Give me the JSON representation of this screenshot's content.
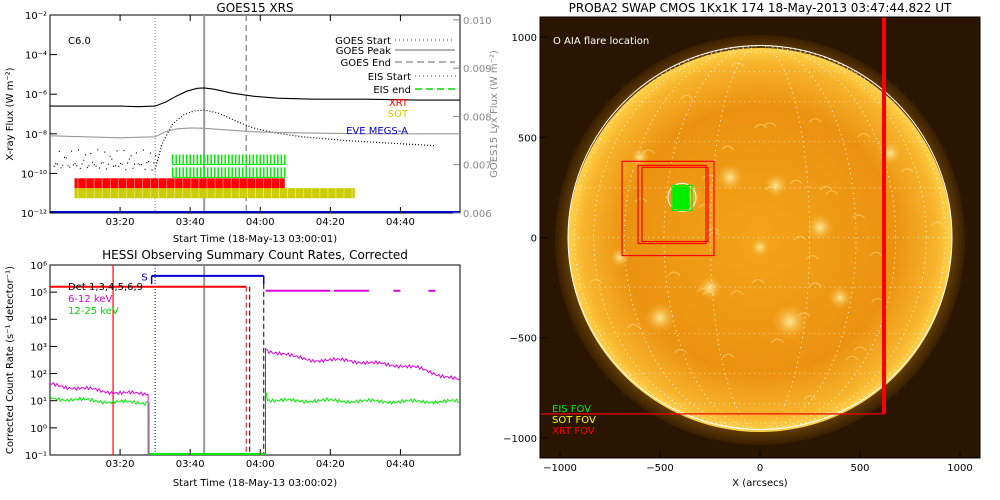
{
  "chart_data": [
    {
      "type": "line",
      "title": "GOES15 XRS",
      "class_label": "C6.0",
      "xlabel": "Start Time (18-May-13 03:00:01)",
      "ylabel_left": "X-ray Flux (W m⁻²)",
      "ylabel_right": "GOES15 Lyx Flux (W m⁻²)",
      "x_ticks": [
        "03:20",
        "03:40",
        "04:00",
        "04:20",
        "04:40"
      ],
      "x_tick_values": [
        20,
        40,
        60,
        80,
        100
      ],
      "xlim": [
        0,
        117
      ],
      "y_log": true,
      "ylim": [
        -12,
        -2
      ],
      "y_ticks": [
        "10⁻¹²",
        "10⁻¹⁰",
        "10⁻⁸",
        "10⁻⁶",
        "10⁻⁴",
        "10⁻²"
      ],
      "y_tick_values": [
        -12,
        -10,
        -8,
        -6,
        -4,
        -2
      ],
      "y2_ticks": [
        "0.006",
        "0.007",
        "0.008",
        "0.009",
        "0.010"
      ],
      "y2_tick_values": [
        0.006,
        0.007,
        0.008,
        0.009,
        0.01
      ],
      "y2lim": [
        0.006,
        0.0101
      ],
      "legend": [
        {
          "label": "GOES Start",
          "style": "dotted",
          "color": "#777777"
        },
        {
          "label": "GOES Peak",
          "style": "solid",
          "color": "#999999"
        },
        {
          "label": "GOES End",
          "style": "dashed",
          "color": "#999999"
        },
        {
          "label": "EIS Start",
          "style": "dotted",
          "color": "#00dd00"
        },
        {
          "label": "EIS end",
          "style": "dashed",
          "color": "#00dd00"
        },
        {
          "label": "XRT",
          "style": "text",
          "color": "#ff0000"
        },
        {
          "label": "SOT",
          "style": "text",
          "color": "#cccc00"
        },
        {
          "label": "EVE MEGS-A",
          "style": "text",
          "color": "#0000cc"
        }
      ],
      "markers": {
        "goes_start": 30,
        "goes_peak": 44,
        "goes_end": 56
      },
      "series": [
        {
          "name": "",
          "color": "#000000",
          "x": [
            0,
            10,
            20,
            25,
            30,
            33,
            36,
            39,
            42,
            44,
            47,
            52,
            58,
            65,
            75,
            90,
            105,
            117
          ],
          "y": [
            -6.6,
            -6.6,
            -6.6,
            -6.63,
            -6.6,
            -6.4,
            -6.1,
            -5.85,
            -5.7,
            -5.68,
            -5.75,
            -5.95,
            -6.1,
            -6.2,
            -6.25,
            -6.25,
            -6.3,
            -6.3
          ]
        },
        {
          "name": "",
          "color": "#000000",
          "dotted": true,
          "x": [
            30,
            32,
            35,
            38,
            41,
            44,
            48,
            53,
            58,
            64,
            72,
            85,
            100,
            110
          ],
          "y": [
            -9.8,
            -8.5,
            -7.5,
            -7.05,
            -6.85,
            -6.8,
            -6.95,
            -7.35,
            -7.7,
            -7.95,
            -8.15,
            -8.35,
            -8.5,
            -8.6
          ]
        },
        {
          "name": "",
          "color": "#999999",
          "x": [
            0,
            20,
            30,
            33,
            36,
            40,
            44,
            50,
            58,
            70,
            90,
            117
          ],
          "y": [
            -8.1,
            -8.2,
            -8.15,
            -7.9,
            -7.75,
            -7.7,
            -7.72,
            -7.8,
            -7.9,
            -7.95,
            -8.0,
            -8.0
          ]
        }
      ],
      "bands": [
        {
          "name": "EIS",
          "color": "#00ee00",
          "rows": [
            -9.3,
            -9.95
          ],
          "x_start": 35,
          "x_end": 67
        },
        {
          "name": "XRT",
          "color": "#ff0000",
          "rows": [
            -10.5
          ],
          "x_start": 7,
          "x_end": 67
        },
        {
          "name": "SOT",
          "color": "#cccc00",
          "rows": [
            -11.0
          ],
          "x_start": 7,
          "x_end": 87
        },
        {
          "name": "EVE MEGS-A",
          "color": "#0000cc",
          "rows": [
            -12.0
          ],
          "x_start": 0,
          "x_end": 117
        }
      ]
    },
    {
      "type": "line",
      "title": "HESSI Observing Summary Count Rates, Corrected",
      "xlabel": "Start Time (18-May-13 03:00:02)",
      "ylabel": "Corrected Count Rate (s⁻¹ detector⁻¹)",
      "x_ticks": [
        "03:20",
        "03:40",
        "04:00",
        "04:20",
        "04:40"
      ],
      "x_tick_values": [
        20,
        40,
        60,
        80,
        100
      ],
      "xlim": [
        0,
        117
      ],
      "y_log": true,
      "ylim": [
        -1,
        6
      ],
      "y_ticks": [
        "10⁻¹",
        "10⁰",
        "10¹",
        "10²",
        "10³",
        "10⁴",
        "10⁵",
        "10⁶"
      ],
      "y_tick_values": [
        -1,
        0,
        1,
        2,
        3,
        4,
        5,
        6
      ],
      "legend": [
        {
          "label": "Det 1,3,4,5,6,9",
          "color": "#000000"
        },
        {
          "label": "6-12 keV",
          "color": "#dd00dd"
        },
        {
          "label": "12-25 keV",
          "color": "#00dd00"
        }
      ],
      "s_label": "S",
      "markers": {
        "red": 18,
        "dotted_blue": 30,
        "gray": 44,
        "dashed_red": 56,
        "dashed_black": 57,
        "dashed_black2": 61
      },
      "series": [
        {
          "name": "6-12 keV",
          "color": "#dd00dd",
          "x": [
            0,
            5,
            10,
            15,
            20,
            25,
            28
          ],
          "y": [
            1.6,
            1.5,
            1.45,
            1.35,
            1.3,
            1.25,
            1.25
          ]
        },
        {
          "name": "6-12 keV",
          "color": "#dd00dd",
          "x": [
            61.5,
            62,
            66,
            70,
            75,
            80,
            85,
            90,
            95,
            100,
            105,
            110,
            117
          ],
          "y": [
            2.95,
            2.85,
            2.75,
            2.6,
            2.5,
            2.48,
            2.5,
            2.4,
            2.35,
            2.3,
            2.2,
            2.0,
            1.75
          ]
        },
        {
          "name": "12-25 keV",
          "color": "#00ee00",
          "x": [
            0,
            5,
            10,
            15,
            20,
            25,
            28
          ],
          "y": [
            1.1,
            1.05,
            1.02,
            0.98,
            0.95,
            0.93,
            0.93
          ]
        },
        {
          "name": "12-25 keV",
          "color": "#00ee00",
          "x": [
            61.5,
            62,
            65,
            70,
            80,
            90,
            100,
            110,
            117
          ],
          "y": [
            1.3,
            1.05,
            1.0,
            1.0,
            1.0,
            0.98,
            0.97,
            0.97,
            0.97
          ]
        }
      ],
      "bars": [
        {
          "color": "#ff0000",
          "y": 5.2,
          "x_start": 0,
          "x_end": 56
        },
        {
          "color": "#0000cc",
          "y": 5.6,
          "x_start": 29,
          "x_end": 61
        },
        {
          "color": "#dd00dd",
          "y": 5.05,
          "x_start": 61.5,
          "x_end": 80
        },
        {
          "color": "#dd00dd",
          "y": 5.05,
          "x_start": 81,
          "x_end": 91
        },
        {
          "color": "#dd00dd",
          "y": 5.05,
          "x_start": 98,
          "x_end": 100
        },
        {
          "color": "#dd00dd",
          "y": 5.05,
          "x_start": 108,
          "x_end": 110
        }
      ]
    },
    {
      "type": "heatmap",
      "title": "PROBA2 SWAP CMOS 1Kx1K 174 18-May-2013 03:47:44.822 UT",
      "xlabel": "X (arcsecs)",
      "ylabel": "",
      "x_ticks": [
        "−1000",
        "−500",
        "0",
        "500",
        "1000"
      ],
      "x_tick_values": [
        -1000,
        -500,
        0,
        500,
        1000
      ],
      "y_ticks": [
        "−1000",
        "−500",
        "0",
        "500",
        "1000"
      ],
      "y_tick_values": [
        -1000,
        -500,
        0,
        500,
        1000
      ],
      "xlim": [
        -1100,
        1100
      ],
      "ylim": [
        -1100,
        1100
      ],
      "annotation": "O AIA flare location",
      "legend": [
        {
          "label": "EIS FOV",
          "color": "#00ee00"
        },
        {
          "label": "SOT FOV",
          "color": "#ffff00"
        },
        {
          "label": "XRT FOV",
          "color": "#ff0000"
        }
      ],
      "solar_radius": 960,
      "flare_location": [
        -390,
        200
      ],
      "fovs": [
        {
          "name": "XRT FOV",
          "color": "#ff0000",
          "x": [
            -690,
            -230
          ],
          "y": [
            -90,
            380
          ]
        },
        {
          "name": "XRT FOV",
          "color": "#ff0000",
          "x": [
            -590,
            -260
          ],
          "y": [
            -20,
            350
          ]
        },
        {
          "name": "XRT FOV",
          "color": "#ff0000",
          "x": [
            -610,
            -270
          ],
          "y": [
            -30,
            360
          ]
        },
        {
          "name": "EIS FOV",
          "color": "#00ee00",
          "x": [
            -440,
            -340
          ],
          "y": [
            135,
            260
          ]
        },
        {
          "name": "XRT FOV",
          "color": "#ff0000",
          "x": [
            -1100,
            620
          ],
          "y": [
            -880,
            1100
          ]
        }
      ]
    }
  ]
}
